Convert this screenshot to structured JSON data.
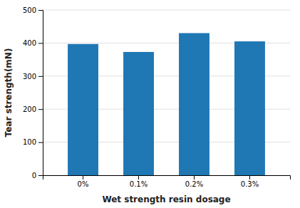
{
  "chart_data": {
    "type": "bar",
    "categories": [
      "0%",
      "0.1%",
      "0.2%",
      "0.3%"
    ],
    "values": [
      397,
      373,
      430,
      405
    ],
    "xlabel": "Wet strength resin dosage",
    "ylabel": "Tear strength(mN)",
    "ylim": [
      0,
      500
    ],
    "yticks": [
      0,
      100,
      200,
      300,
      400,
      500
    ],
    "grid": true
  }
}
